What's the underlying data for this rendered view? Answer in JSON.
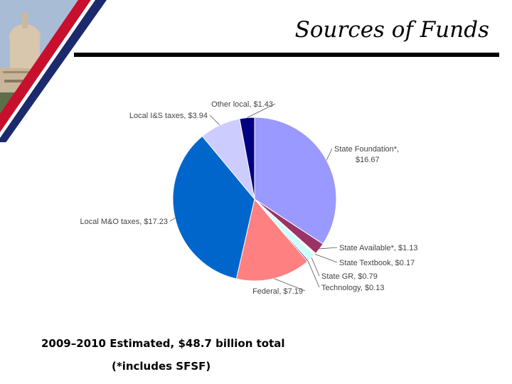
{
  "slide": {
    "title": "Sources of Funds",
    "caption": "2009–2010 Estimated, $48.7 billion total",
    "note": "(*includes SFSF)"
  },
  "colors": {
    "flag_red": "#c8102e",
    "flag_blue": "#1a2a6c",
    "sky": "#a9bcd6",
    "building": "#c9b59a"
  },
  "chart_data": {
    "type": "pie",
    "title": "",
    "start_angle_deg": 0,
    "direction": "clockwise",
    "legend": "none",
    "slices": [
      {
        "label": "State Foundation*, $16.67",
        "value": 16.67,
        "color": "#9999ff"
      },
      {
        "label": "State Available*, $1.13",
        "value": 1.13,
        "color": "#993366"
      },
      {
        "label": "State Textbook, $0.17",
        "value": 0.17,
        "color": "#ffffcc"
      },
      {
        "label": "State GR, $0.79",
        "value": 0.79,
        "color": "#ccffff"
      },
      {
        "label": "Technology, $0.13",
        "value": 0.13,
        "color": "#660066"
      },
      {
        "label": "Federal, $7.19",
        "value": 7.19,
        "color": "#ff8080"
      },
      {
        "label": "Local M&O taxes, $17.23",
        "value": 17.23,
        "color": "#0066cc"
      },
      {
        "label": "Local I&S taxes, $3.94",
        "value": 3.94,
        "color": "#ccccff"
      },
      {
        "label": "Other local, $1.43",
        "value": 1.43,
        "color": "#000080"
      }
    ]
  }
}
